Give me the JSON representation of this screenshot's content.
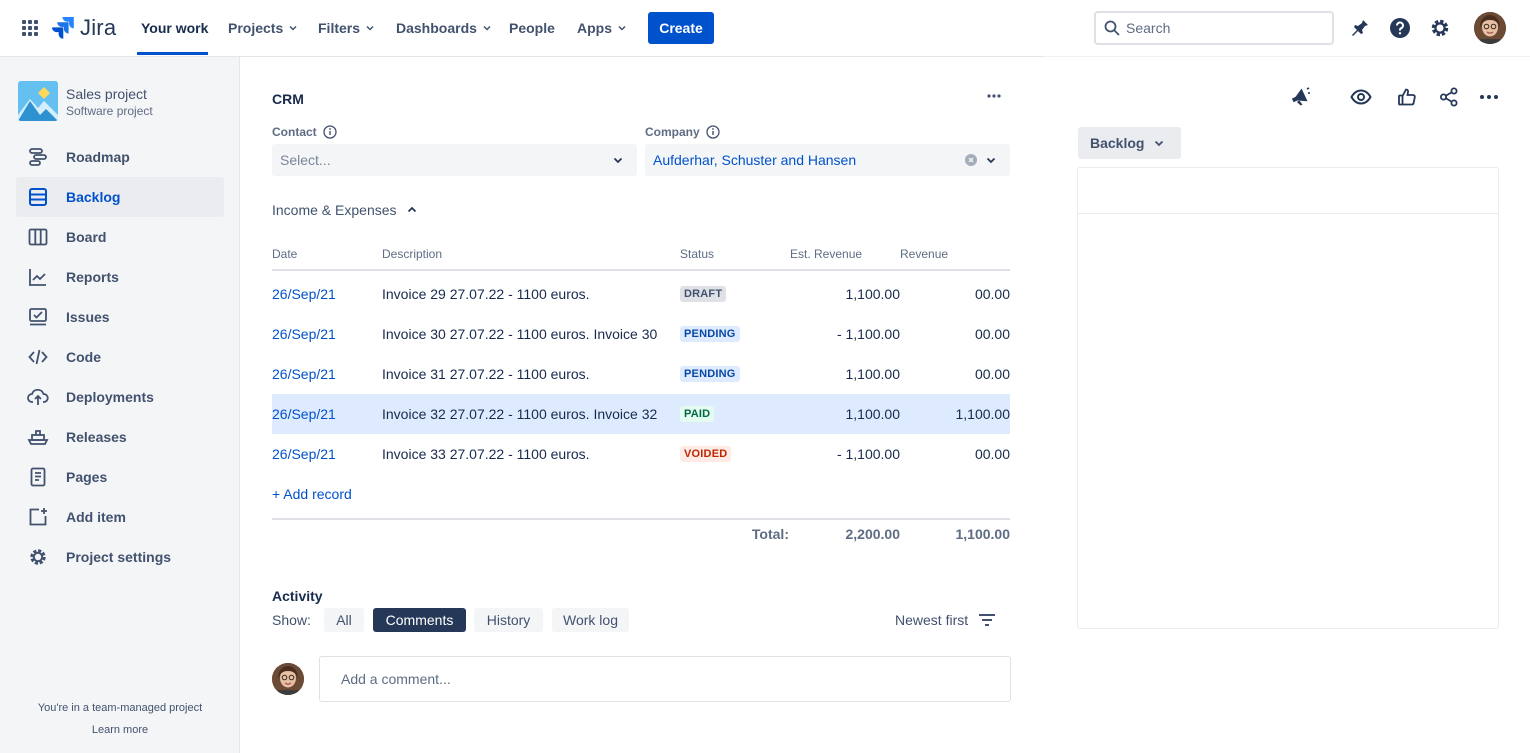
{
  "topnav": {
    "logo_text": "Jira",
    "items": [
      {
        "label": "Your work"
      },
      {
        "label": "Projects"
      },
      {
        "label": "Filters"
      },
      {
        "label": "Dashboards"
      },
      {
        "label": "People"
      },
      {
        "label": "Apps"
      }
    ],
    "create_label": "Create",
    "search_placeholder": "Search",
    "icons": [
      "notifications-icon",
      "help-icon",
      "settings-icon"
    ],
    "accent": "#0052CC"
  },
  "sidebar": {
    "project_name": "Sales project",
    "project_type": "Software project",
    "items": [
      {
        "label": "Roadmap",
        "icon": "roadmap-icon"
      },
      {
        "label": "Backlog",
        "icon": "backlog-icon",
        "selected": true
      },
      {
        "label": "Board",
        "icon": "board-icon"
      },
      {
        "label": "Reports",
        "icon": "reports-icon"
      },
      {
        "label": "Issues",
        "icon": "issues-icon"
      },
      {
        "label": "Code",
        "icon": "code-icon"
      },
      {
        "label": "Deployments",
        "icon": "deployments-icon"
      },
      {
        "label": "Releases",
        "icon": "releases-icon"
      },
      {
        "label": "Pages",
        "icon": "pages-icon"
      },
      {
        "label": "Add item",
        "icon": "add-item-icon"
      },
      {
        "label": "Project settings",
        "icon": "gear-icon"
      }
    ],
    "footer_text": "You're in a team-managed project",
    "footer_link": "Learn more"
  },
  "crm": {
    "title": "CRM",
    "contact_label": "Contact",
    "contact_placeholder": "Select...",
    "company_label": "Company",
    "company_value": "Aufderhar, Schuster and Hansen",
    "section_title": "Income & Expenses",
    "columns": [
      "Date",
      "Description",
      "Status",
      "Est. Revenue",
      "Revenue"
    ],
    "rows": [
      {
        "date": "26/Sep/21",
        "description": "Invoice 29 27.07.22 - 1100 euros.",
        "status": "DRAFT",
        "est": "1,100.00",
        "revenue": "00.00"
      },
      {
        "date": "26/Sep/21",
        "description": "Invoice 30 27.07.22 - 1100 euros. Invoice 30",
        "status": "PENDING",
        "est": "- 1,100.00",
        "revenue": "00.00"
      },
      {
        "date": "26/Sep/21",
        "description": "Invoice 31 27.07.22 - 1100 euros.",
        "status": "PENDING",
        "est": "1,100.00",
        "revenue": "00.00"
      },
      {
        "date": "26/Sep/21",
        "description": "Invoice 32 27.07.22 - 1100 euros. Invoice 32",
        "status": "PAID",
        "est": "1,100.00",
        "revenue": "1,100.00",
        "highlighted": true
      },
      {
        "date": "26/Sep/21",
        "description": "Invoice 33 27.07.22 - 1100 euros.",
        "status": "VOIDED",
        "est": "- 1,100.00",
        "revenue": "00.00"
      }
    ],
    "add_record_label": "+ Add record",
    "total_label": "Total:",
    "total_est": "2,200.00",
    "total_revenue": "1,100.00"
  },
  "activity": {
    "title": "Activity",
    "show_label": "Show:",
    "filters": [
      {
        "label": "All"
      },
      {
        "label": "Comments",
        "active": true
      },
      {
        "label": "History"
      },
      {
        "label": "Work log"
      }
    ],
    "sort_label": "Newest first",
    "comment_placeholder": "Add a comment..."
  },
  "right_panel": {
    "status_label": "Backlog",
    "icons": [
      "announcement-icon",
      "watch-icon",
      "like-icon",
      "share-icon",
      "more-icon"
    ]
  }
}
